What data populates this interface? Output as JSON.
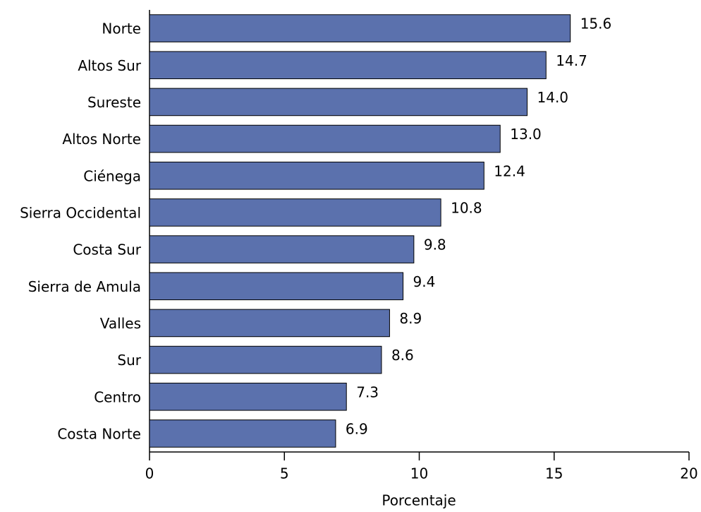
{
  "chart_data": {
    "type": "bar",
    "orientation": "horizontal",
    "xlabel": "Porcentaje",
    "categories": [
      "Norte",
      "Altos Sur",
      "Sureste",
      "Altos Norte",
      "Ciénega",
      "Sierra Occidental",
      "Costa Sur",
      "Sierra de Amula",
      "Valles",
      "Sur",
      "Centro",
      "Costa Norte"
    ],
    "values": [
      15.6,
      14.7,
      14.0,
      13.0,
      12.4,
      10.8,
      9.8,
      9.4,
      8.9,
      8.6,
      7.3,
      6.9
    ],
    "value_labels": [
      "15.6",
      "14.7",
      "14.0",
      "13.0",
      "12.4",
      "10.8",
      "9.8",
      "9.4",
      "8.9",
      "8.6",
      "7.3",
      "6.9"
    ],
    "color": "#5b71ad",
    "xlim": [
      0,
      20
    ],
    "xticks": [
      0,
      5,
      10,
      15,
      20
    ],
    "grid": false
  }
}
